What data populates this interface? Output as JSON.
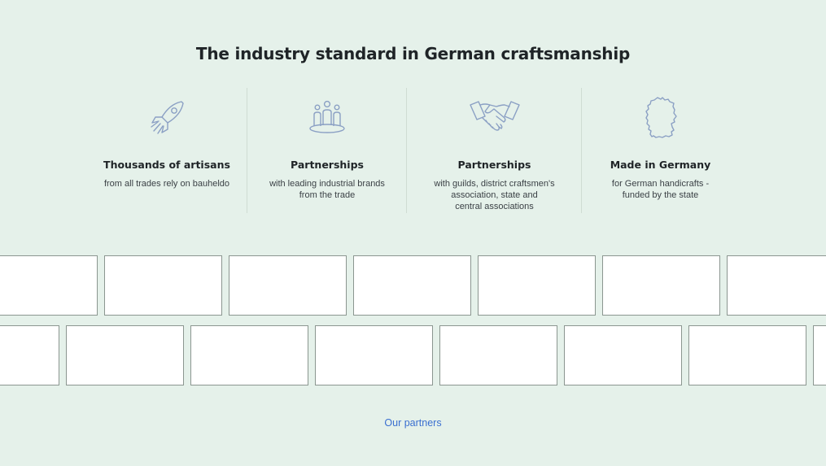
{
  "section": {
    "title": "The industry standard in German craftsmanship"
  },
  "features": [
    {
      "icon": "rocket-icon",
      "heading": "Thousands of artisans",
      "desc_lines": [
        "from all trades rely on bauheldo"
      ]
    },
    {
      "icon": "people-icon",
      "heading": "Partnerships",
      "desc_lines": [
        "with leading industrial brands",
        "from the trade"
      ]
    },
    {
      "icon": "handshake-icon",
      "heading": "Partnerships",
      "desc_lines": [
        "with guilds, district craftsmen's",
        "association, state and",
        "central associations"
      ]
    },
    {
      "icon": "germany-map-icon",
      "heading": "Made in Germany",
      "desc_lines": [
        "for German handicrafts -",
        "funded by the state"
      ]
    }
  ],
  "partners": {
    "link_label": "Our partners"
  },
  "colors": {
    "background": "#e5f1ea",
    "icon_stroke": "#8ba0c4",
    "link": "#3a6fd0"
  }
}
